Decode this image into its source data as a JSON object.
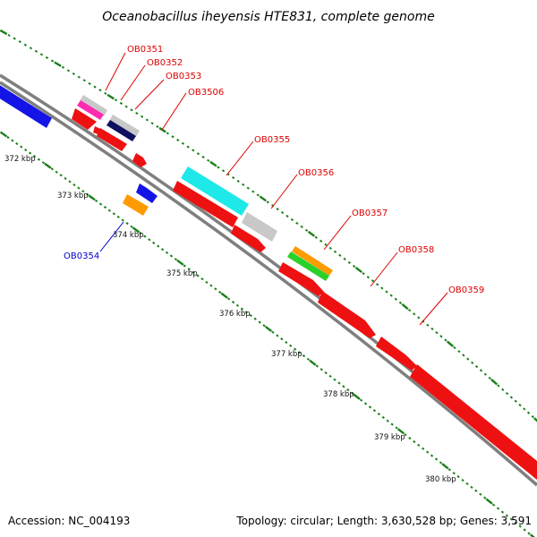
{
  "title": "Oceanobacillus iheyensis HTE831, complete genome",
  "footer": {
    "accession": "Accession: NC_004193",
    "topology": "Topology: circular; Length: 3,630,528 bp; Genes: 3,591"
  },
  "colors": {
    "backbone": "#7f7f7f",
    "tick": "#1a7f1a",
    "label_red": "#dd0000",
    "label_blue": "#0000cc"
  },
  "tick_labels": [
    "372 kbp",
    "373 kbp",
    "374 kbp",
    "375 kbp",
    "376 kbp",
    "377 kbp",
    "378 kbp",
    "379 kbp",
    "380 kbp"
  ],
  "gene_labels": [
    "OB0351",
    "OB0352",
    "OB0353",
    "OB3506",
    "OB0355",
    "OB0356",
    "OB0357",
    "OB0358",
    "OB0359",
    "OB0354"
  ]
}
